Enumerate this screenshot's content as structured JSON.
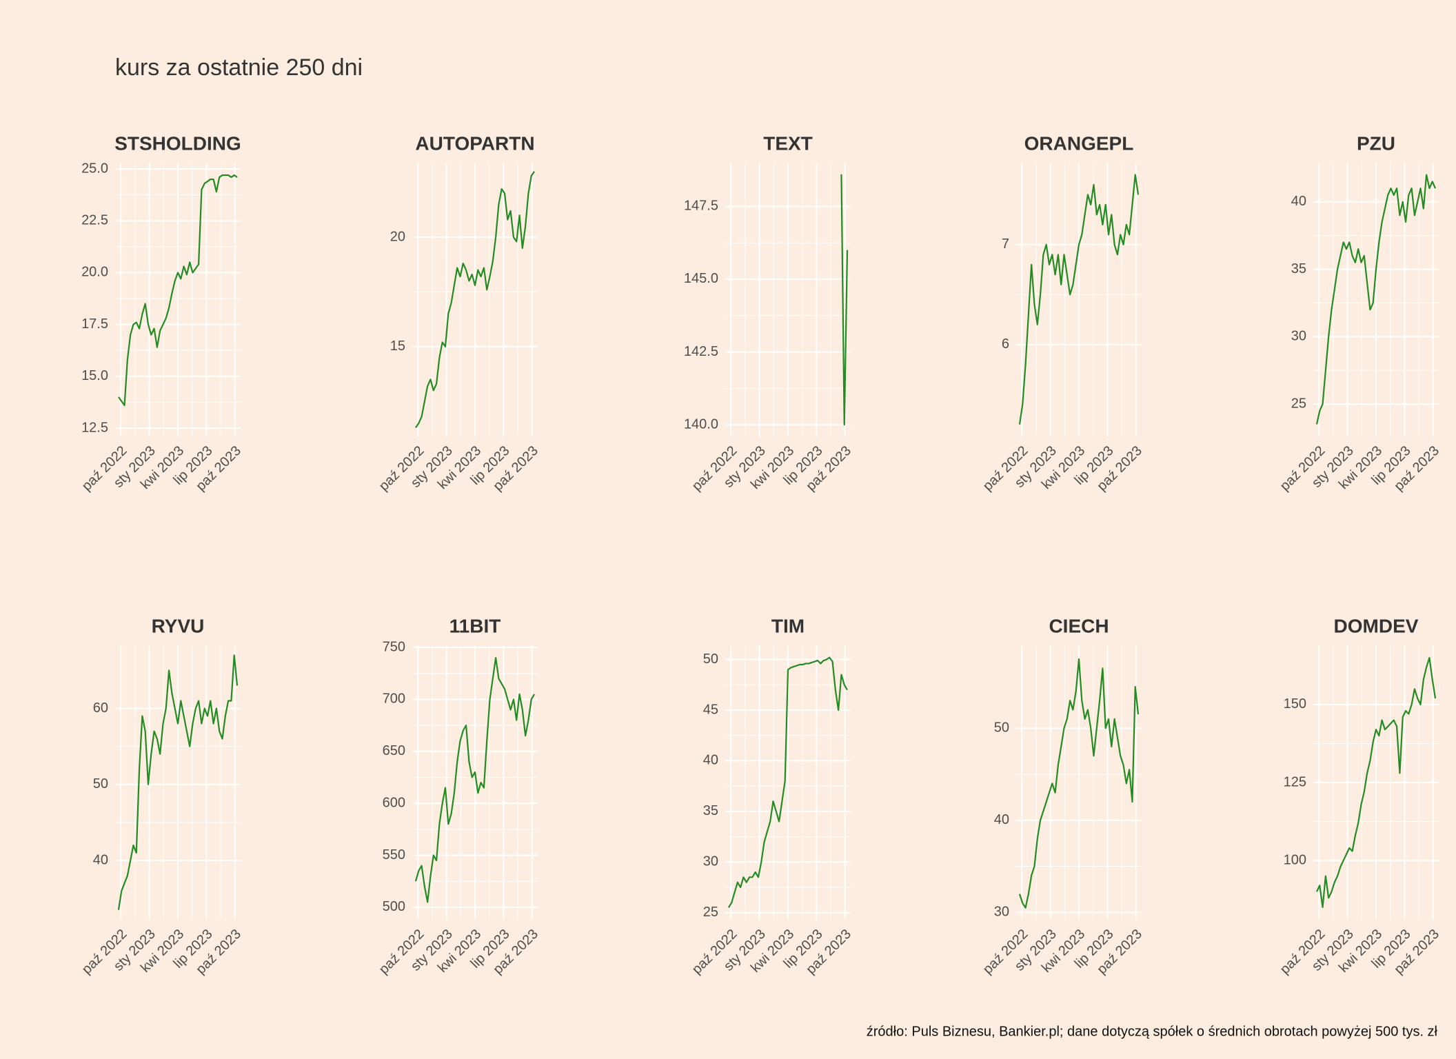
{
  "chart_data": {
    "type": "line",
    "title": "kurs za ostatnie 250 dni",
    "caption": "źródło: Puls Biznesu, Bankier.pl; dane dotyczą spółek o średnich obrotach powyżej 500 tys. zł",
    "grid": true,
    "x": [
      2022.73,
      2022.756,
      2022.782,
      2022.808,
      2022.834,
      2022.86,
      2022.886,
      2022.912,
      2022.938,
      2022.964,
      2022.99,
      2023.016,
      2023.042,
      2023.068,
      2023.094,
      2023.12,
      2023.146,
      2023.172,
      2023.198,
      2023.224,
      2023.25,
      2023.276,
      2023.302,
      2023.328,
      2023.354,
      2023.38,
      2023.406,
      2023.432,
      2023.458,
      2023.484,
      2023.51,
      2023.536,
      2023.562,
      2023.588,
      2023.614,
      2023.64,
      2023.666,
      2023.692,
      2023.718,
      2023.744,
      2023.77
    ],
    "xlim": [
      2022.7,
      2023.8
    ],
    "xticks": [
      {
        "value": 2022.75,
        "label": "paź 2022"
      },
      {
        "value": 2023.0,
        "label": "sty 2023"
      },
      {
        "value": 2023.25,
        "label": "kwi 2023"
      },
      {
        "value": 2023.5,
        "label": "lip 2023"
      },
      {
        "value": 2023.75,
        "label": "paź 2023"
      }
    ],
    "series": [
      {
        "name": "STSHOLDING",
        "color": "#228b22",
        "ylim": [
          12.1,
          25.3
        ],
        "yticks": [
          12.5,
          {
            "value": 15,
            "label": "15.0"
          },
          17.5,
          {
            "value": 20,
            "label": "20.0"
          },
          22.5,
          {
            "value": 25,
            "label": "25.0"
          }
        ],
        "values": [
          14.0,
          13.8,
          13.6,
          15.8,
          17.0,
          17.5,
          17.6,
          17.3,
          18.0,
          18.5,
          17.5,
          17.0,
          17.3,
          16.4,
          17.2,
          17.5,
          17.8,
          18.3,
          19.0,
          19.6,
          20.0,
          19.7,
          20.3,
          19.9,
          20.5,
          20.0,
          20.2,
          20.4,
          24.0,
          24.3,
          24.4,
          24.5,
          24.5,
          23.9,
          24.6,
          24.7,
          24.7,
          24.7,
          24.6,
          24.7,
          24.6
        ]
      },
      {
        "name": "AUTOPARTN",
        "color": "#228b22",
        "ylim": [
          10.9,
          23.4
        ],
        "yticks": [
          15,
          20
        ],
        "values": [
          11.3,
          11.5,
          11.8,
          12.5,
          13.2,
          13.5,
          13.0,
          13.3,
          14.5,
          15.2,
          15.0,
          16.5,
          17.0,
          17.8,
          18.6,
          18.2,
          18.8,
          18.5,
          18.0,
          18.3,
          17.8,
          18.5,
          18.2,
          18.6,
          17.6,
          18.2,
          18.9,
          20.0,
          21.5,
          22.2,
          22.0,
          20.8,
          21.2,
          20.0,
          19.8,
          21.0,
          19.5,
          20.5,
          22.0,
          22.8,
          23.0
        ]
      },
      {
        "name": "TEXT",
        "color": "#228b22",
        "ylim": [
          139.6,
          149.0
        ],
        "yticks": [
          {
            "value": 140,
            "label": "140.0"
          },
          142.5,
          {
            "value": 145,
            "label": "145.0"
          },
          147.5
        ],
        "values": [
          null,
          null,
          null,
          null,
          null,
          null,
          null,
          null,
          null,
          null,
          null,
          null,
          null,
          null,
          null,
          null,
          null,
          null,
          null,
          null,
          null,
          null,
          null,
          null,
          null,
          null,
          null,
          null,
          null,
          null,
          null,
          null,
          null,
          null,
          null,
          null,
          null,
          null,
          148.6,
          140.0,
          146.0
        ]
      },
      {
        "name": "ORANGEPL",
        "color": "#228b22",
        "ylim": [
          5.08,
          7.82
        ],
        "yticks": [
          6,
          7
        ],
        "values": [
          5.2,
          5.4,
          5.8,
          6.3,
          6.8,
          6.4,
          6.2,
          6.5,
          6.9,
          7.0,
          6.8,
          6.9,
          6.7,
          6.9,
          6.6,
          6.9,
          6.7,
          6.5,
          6.6,
          6.8,
          7.0,
          7.1,
          7.3,
          7.5,
          7.4,
          7.6,
          7.3,
          7.4,
          7.2,
          7.4,
          7.1,
          7.3,
          7.0,
          6.9,
          7.1,
          7.0,
          7.2,
          7.1,
          7.4,
          7.7,
          7.5
        ]
      },
      {
        "name": "PZU",
        "color": "#228b22",
        "ylim": [
          22.6,
          42.9
        ],
        "yticks": [
          25,
          30,
          35,
          40
        ],
        "values": [
          23.5,
          24.5,
          25.0,
          27.5,
          30,
          32,
          33.5,
          35,
          36,
          37,
          36.5,
          37,
          36,
          35.5,
          36.5,
          35.5,
          36,
          34,
          32,
          32.5,
          35,
          37,
          38.5,
          39.5,
          40.5,
          41,
          40.5,
          41,
          39,
          40,
          38.5,
          40.5,
          41,
          39,
          40,
          41,
          39.5,
          42,
          41,
          41.5,
          41
        ]
      },
      {
        "name": "RYVU",
        "color": "#228b22",
        "ylim": [
          32.2,
          68.3
        ],
        "yticks": [
          40,
          50,
          60
        ],
        "values": [
          33.5,
          36,
          37,
          38,
          40,
          42,
          41,
          52,
          59,
          57,
          50,
          54,
          57,
          56,
          54,
          58,
          60,
          65,
          62,
          60,
          58,
          61,
          59,
          57,
          55,
          58,
          60,
          61,
          58,
          60,
          59,
          61,
          58,
          60,
          57,
          56,
          59,
          61,
          61,
          67,
          63
        ]
      },
      {
        "name": "11BIT",
        "color": "#228b22",
        "ylim": [
          488,
          752
        ],
        "yticks": [
          500,
          550,
          600,
          650,
          700,
          750
        ],
        "values": [
          525,
          535,
          540,
          520,
          505,
          530,
          550,
          545,
          580,
          600,
          615,
          580,
          590,
          610,
          640,
          660,
          670,
          675,
          640,
          625,
          630,
          610,
          620,
          615,
          660,
          700,
          720,
          740,
          720,
          715,
          710,
          700,
          690,
          700,
          680,
          705,
          690,
          665,
          680,
          700,
          705
        ]
      },
      {
        "name": "TIM",
        "color": "#228b22",
        "ylim": [
          24.3,
          51.4
        ],
        "yticks": [
          25,
          30,
          35,
          40,
          45,
          50
        ],
        "values": [
          25.5,
          26,
          27,
          28,
          27.5,
          28.5,
          28,
          28.5,
          28.5,
          29,
          28.5,
          30,
          32,
          33,
          34,
          36,
          35,
          34,
          36,
          38,
          49,
          49.2,
          49.3,
          49.4,
          49.5,
          49.5,
          49.6,
          49.6,
          49.7,
          49.8,
          49.9,
          49.6,
          49.9,
          50.0,
          50.2,
          49.8,
          47.0,
          45.0,
          48.5,
          47.5,
          47.0
        ]
      },
      {
        "name": "CIECH",
        "color": "#228b22",
        "ylim": [
          29.2,
          59.0
        ],
        "yticks": [
          30,
          40,
          50
        ],
        "values": [
          32,
          31,
          30.5,
          32,
          34,
          35,
          38,
          40,
          41,
          42,
          43,
          44,
          43,
          46,
          48,
          50,
          51,
          53,
          52,
          54,
          57.5,
          53,
          51,
          52,
          50,
          47,
          50,
          53,
          56.5,
          50,
          51,
          48,
          51,
          49,
          47,
          46,
          44,
          45.5,
          42,
          54.5,
          51.5
        ]
      },
      {
        "name": "DOMDEV",
        "color": "#228b22",
        "ylim": [
          81,
          169
        ],
        "yticks": [
          100,
          125,
          150
        ],
        "values": [
          90,
          92,
          85,
          95,
          88,
          90,
          93,
          95,
          98,
          100,
          102,
          104,
          103,
          108,
          112,
          118,
          122,
          128,
          132,
          138,
          142,
          140,
          145,
          142,
          143,
          144,
          145,
          143,
          128,
          146,
          148,
          147,
          150,
          155,
          152,
          150,
          158,
          162,
          165,
          158,
          152
        ]
      }
    ]
  }
}
